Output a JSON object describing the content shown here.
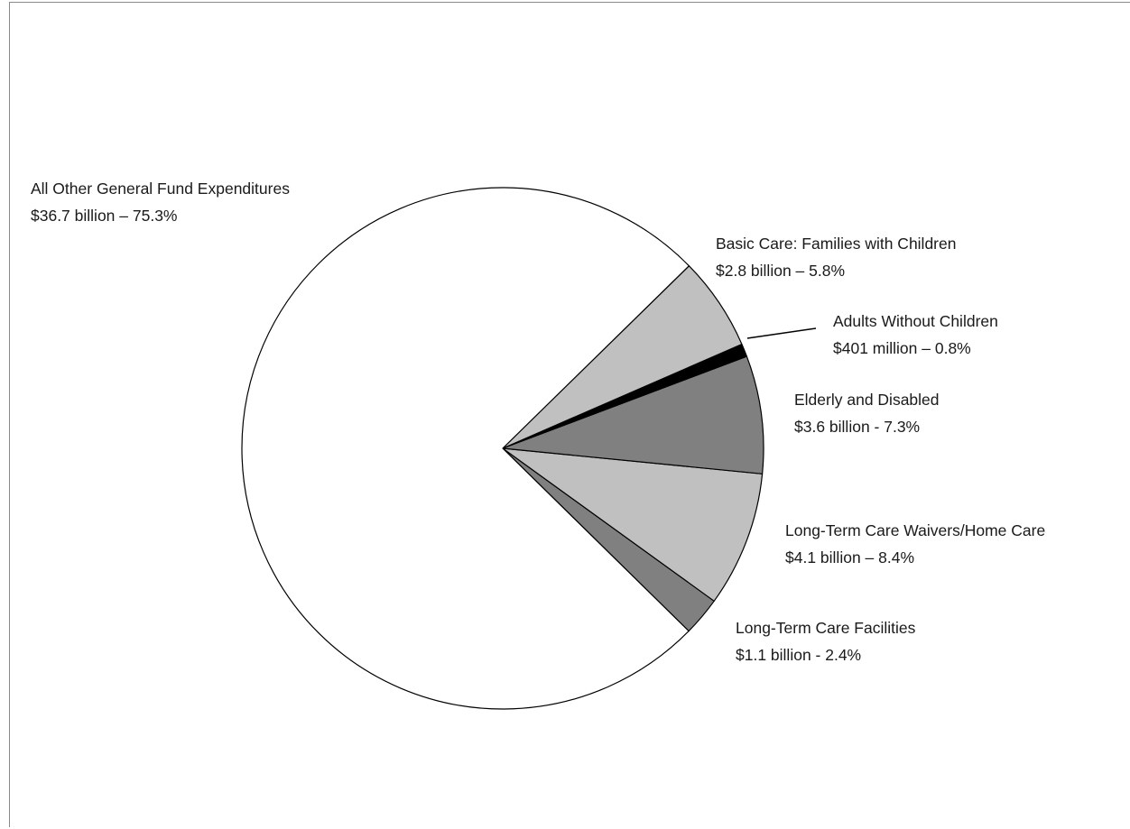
{
  "chart_data": {
    "type": "pie",
    "title": "",
    "slices": [
      {
        "label": "All Other General Fund Expenditures",
        "value_text": "$36.7 billion – 75.3%",
        "percent": 75.3,
        "color": "#ffffff"
      },
      {
        "label": "Basic Care: Families with Children",
        "value_text": "$2.8 billion – 5.8%",
        "percent": 5.8,
        "color": "#c0c0c0"
      },
      {
        "label": "Adults Without Children",
        "value_text": "$401 million – 0.8%",
        "percent": 0.8,
        "color": "#000000"
      },
      {
        "label": "Elderly and Disabled",
        "value_text": "$3.6 billion - 7.3%",
        "percent": 7.3,
        "color": "#808080"
      },
      {
        "label": "Long-Term Care Waivers/Home Care",
        "value_text": "$4.1 billion – 8.4%",
        "percent": 8.4,
        "color": "#c0c0c0"
      },
      {
        "label": "Long-Term Care Facilities",
        "value_text": "$1.1 billion - 2.4%",
        "percent": 2.4,
        "color": "#808080"
      }
    ],
    "legend": "none",
    "slice_order": "counterclockwise from lower-right"
  }
}
